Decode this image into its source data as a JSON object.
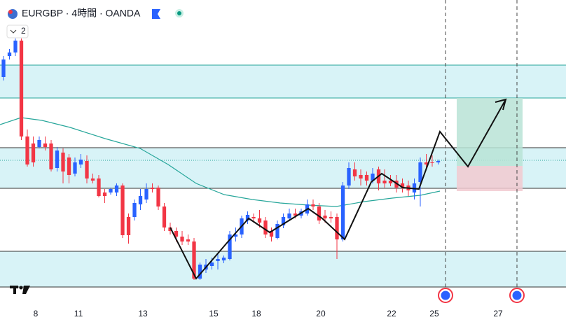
{
  "chart_data": {
    "type": "candlestick",
    "title": "EURGBP · 4時間 · OANDA",
    "interval_badge": "2",
    "up_color": "#2962ff",
    "down_color": "#f23645",
    "xlim": [
      -0.59,
      94.47
    ],
    "ylim": [
      0,
      430
    ],
    "xticks": [
      {
        "value": 5.41,
        "label": "8"
      },
      {
        "value": 12.59,
        "label": "11"
      },
      {
        "value": 23.41,
        "label": "13"
      },
      {
        "value": 35.29,
        "label": "15"
      },
      {
        "value": 42.47,
        "label": "18"
      },
      {
        "value": 53.29,
        "label": "20"
      },
      {
        "value": 65.18,
        "label": "22"
      },
      {
        "value": 72.35,
        "label": "25"
      },
      {
        "value": 83.06,
        "label": "27"
      }
    ],
    "open": [
      320,
      350,
      355,
      372,
      235,
      225,
      220,
      225,
      225,
      190,
      212,
      205,
      182,
      195,
      200,
      175,
      175,
      155,
      155,
      155,
      165,
      120,
      120,
      138,
      145,
      162,
      162,
      135,
      105,
      100,
      92,
      88,
      85,
      32,
      45,
      50,
      57,
      58,
      60,
      92,
      95,
      115,
      120,
      118,
      115,
      100,
      90,
      108,
      118,
      125,
      122,
      125,
      138,
      135,
      122,
      120,
      120,
      88,
      165,
      188,
      180,
      180,
      172,
      188,
      172,
      172,
      172,
      168,
      165,
      155,
      170,
      198,
      198,
      198
    ],
    "high": [
      350,
      360,
      375,
      375,
      245,
      235,
      235,
      235,
      230,
      220,
      218,
      210,
      205,
      210,
      208,
      182,
      180,
      160,
      162,
      168,
      168,
      125,
      145,
      160,
      168,
      168,
      165,
      140,
      112,
      105,
      100,
      95,
      90,
      55,
      60,
      62,
      68,
      65,
      100,
      105,
      122,
      128,
      125,
      130,
      120,
      105,
      115,
      125,
      132,
      132,
      132,
      145,
      145,
      140,
      130,
      128,
      125,
      170,
      198,
      198,
      188,
      185,
      190,
      192,
      188,
      180,
      180,
      175,
      172,
      175,
      205,
      210,
      208,
      202
    ],
    "low": [
      315,
      345,
      350,
      230,
      192,
      192,
      218,
      215,
      185,
      185,
      168,
      168,
      178,
      190,
      168,
      168,
      148,
      140,
      152,
      150,
      90,
      82,
      115,
      130,
      140,
      155,
      130,
      100,
      95,
      85,
      80,
      80,
      30,
      30,
      40,
      45,
      45,
      54,
      58,
      85,
      90,
      110,
      112,
      105,
      90,
      85,
      88,
      104,
      114,
      118,
      118,
      122,
      130,
      110,
      112,
      112,
      60,
      85,
      160,
      172,
      165,
      165,
      168,
      158,
      162,
      164,
      155,
      155,
      150,
      145,
      135,
      190,
      192,
      195
    ],
    "close": [
      345,
      355,
      372,
      235,
      195,
      198,
      230,
      220,
      188,
      215,
      185,
      180,
      198,
      202,
      175,
      172,
      150,
      150,
      160,
      165,
      94,
      94,
      140,
      150,
      160,
      160,
      135,
      105,
      100,
      92,
      85,
      85,
      32,
      52,
      52,
      55,
      60,
      62,
      95,
      95,
      118,
      123,
      118,
      112,
      95,
      92,
      110,
      120,
      125,
      122,
      128,
      138,
      135,
      115,
      118,
      118,
      88,
      165,
      190,
      178,
      175,
      172,
      182,
      168,
      168,
      168,
      162,
      162,
      158,
      168,
      198,
      195,
      197,
      200
    ]
  }
}
